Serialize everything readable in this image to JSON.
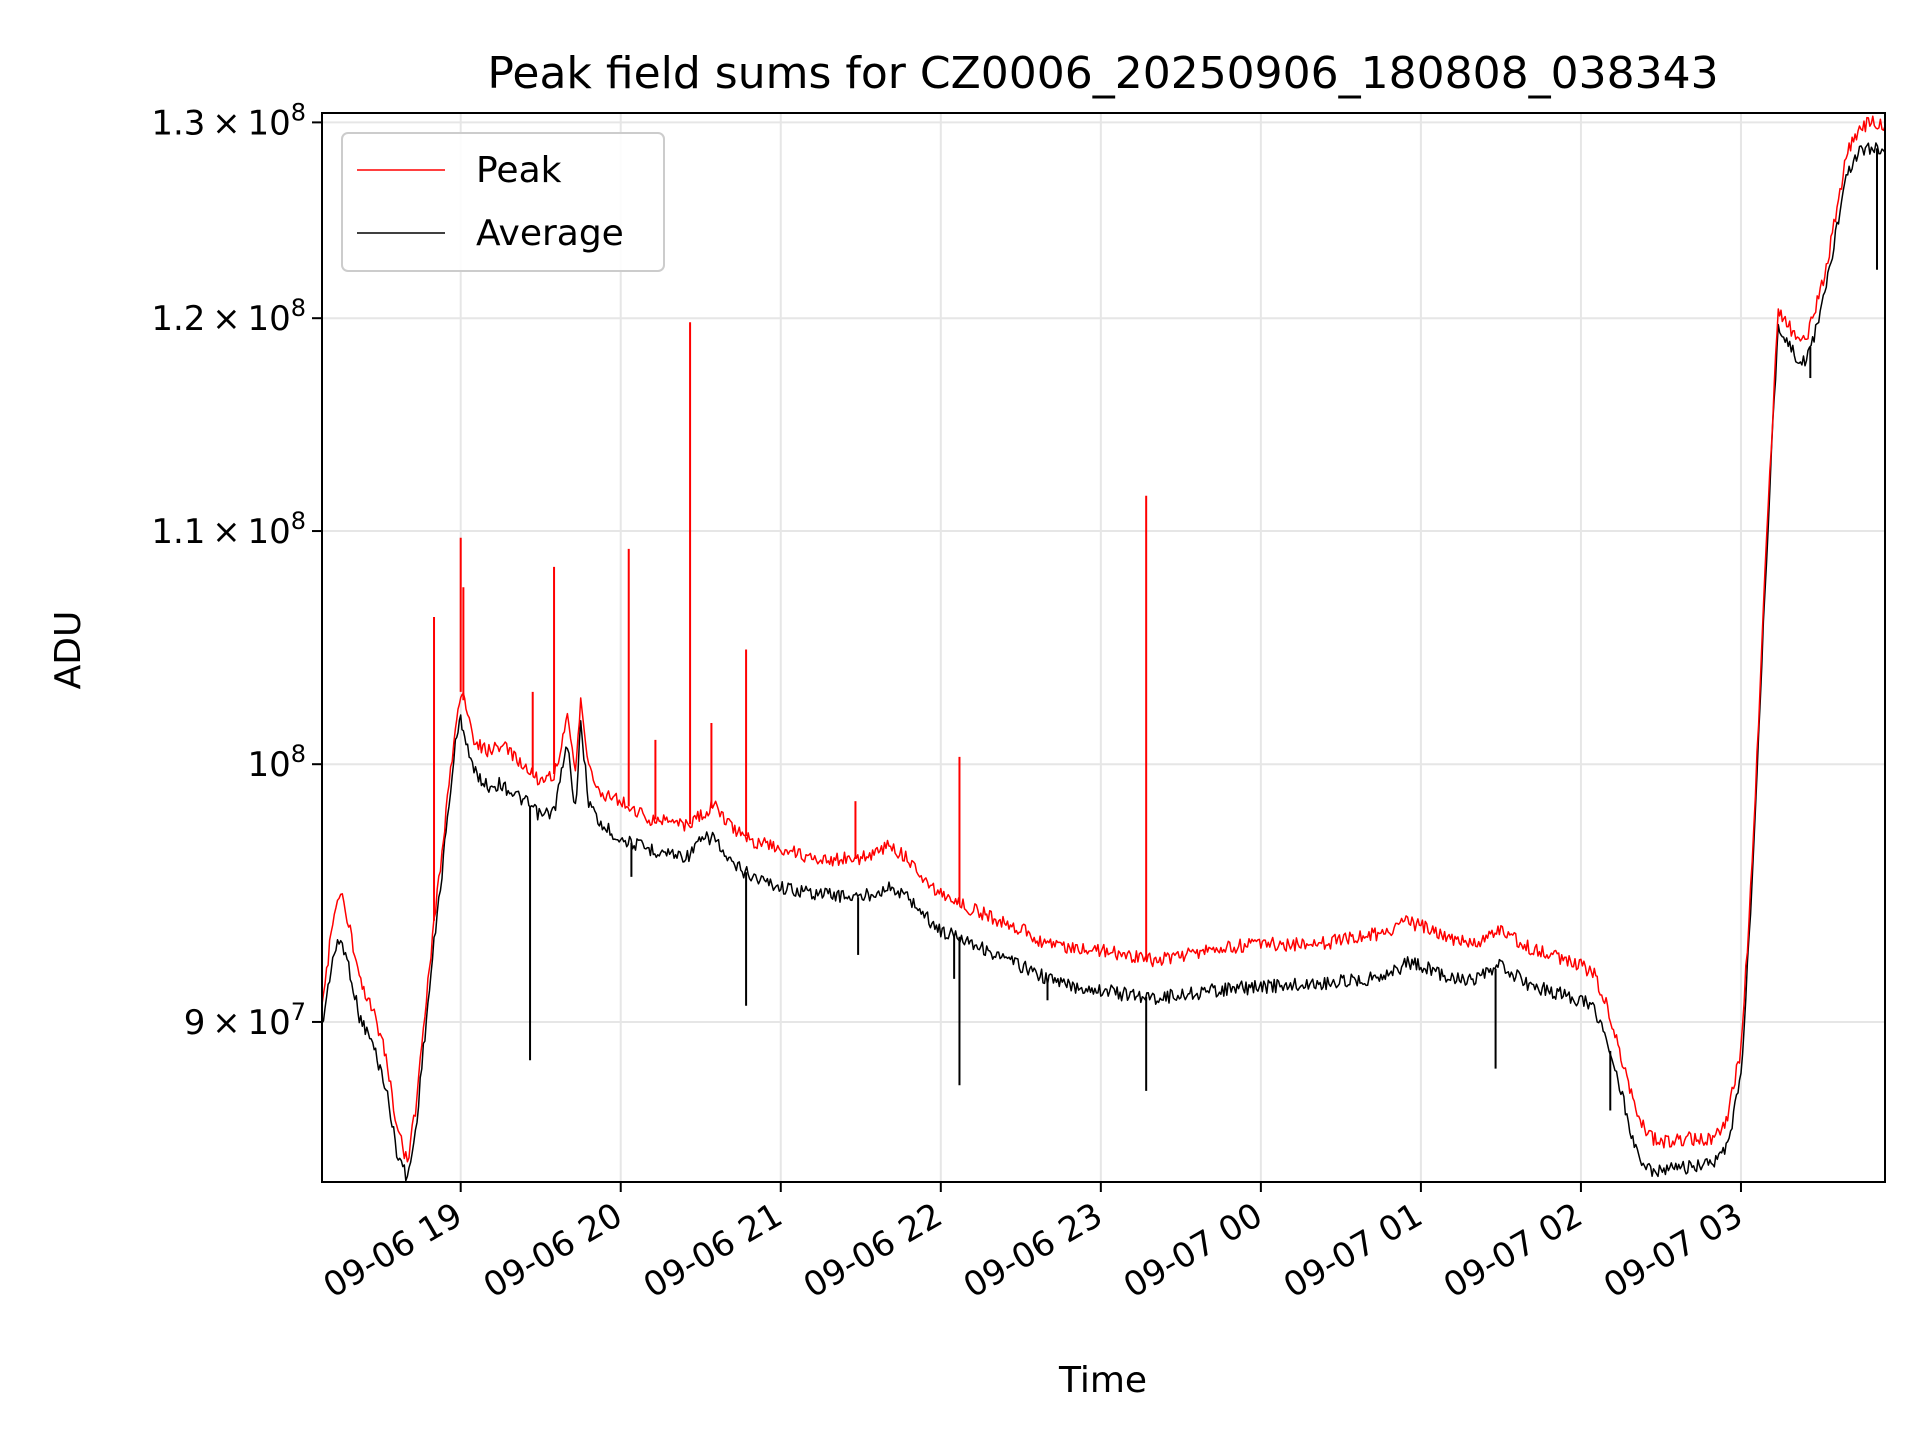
{
  "chart_data": {
    "type": "line",
    "title": "Peak field sums for CZ0006_20250906_180808_038343",
    "xlabel": "Time",
    "ylabel": "ADU",
    "yscale": "log",
    "xlim": [
      "2025-09-06 18:08",
      "2025-09-07 03:54"
    ],
    "ylim": [
      84300000,
      130500000
    ],
    "grid": true,
    "legend_position": "top-left",
    "x_ticks": [
      "09-06 19",
      "09-06 20",
      "09-06 21",
      "09-06 22",
      "09-06 23",
      "09-07 00",
      "09-07 01",
      "09-07 02",
      "09-07 03"
    ],
    "x_tick_times": [
      "2025-09-06 19:00",
      "2025-09-06 20:00",
      "2025-09-06 21:00",
      "2025-09-06 22:00",
      "2025-09-06 23:00",
      "2025-09-07 00:00",
      "2025-09-07 01:00",
      "2025-09-07 02:00",
      "2025-09-07 03:00"
    ],
    "y_ticks": [
      {
        "value": 90000000,
        "mantissa": "9",
        "exponent": "7"
      },
      {
        "value": 100000000,
        "mantissa": "",
        "exponent": "8"
      },
      {
        "value": 110000000,
        "mantissa": "1.1",
        "exponent": "8"
      },
      {
        "value": 120000000,
        "mantissa": "1.2",
        "exponent": "8"
      },
      {
        "value": 130000000,
        "mantissa": "1.3",
        "exponent": "8"
      }
    ],
    "series": [
      {
        "name": "Peak",
        "color": "#ff0000",
        "points": [
          [
            "2025-09-06 18:08",
            90500000
          ],
          [
            "2025-09-06 18:12",
            93800000
          ],
          [
            "2025-09-06 18:15",
            94800000
          ],
          [
            "2025-09-06 18:18",
            93700000
          ],
          [
            "2025-09-06 18:22",
            91500000
          ],
          [
            "2025-09-06 18:27",
            90400000
          ],
          [
            "2025-09-06 18:32",
            88800000
          ],
          [
            "2025-09-06 18:36",
            86200000
          ],
          [
            "2025-09-06 18:40",
            85000000
          ],
          [
            "2025-09-06 18:43",
            86800000
          ],
          [
            "2025-09-06 18:46",
            89800000
          ],
          [
            "2025-09-06 18:50",
            93800000
          ],
          [
            "2025-09-06 18:53",
            96500000
          ],
          [
            "2025-09-06 18:55",
            98500000
          ],
          [
            "2025-09-06 18:58",
            101500000
          ],
          [
            "2025-09-06 19:00",
            103000000
          ],
          [
            "2025-09-06 19:02",
            102300000
          ],
          [
            "2025-09-06 19:05",
            101000000
          ],
          [
            "2025-09-06 19:10",
            100500000
          ],
          [
            "2025-09-06 19:15",
            100800000
          ],
          [
            "2025-09-06 19:20",
            100300000
          ],
          [
            "2025-09-06 19:25",
            99800000
          ],
          [
            "2025-09-06 19:30",
            99300000
          ],
          [
            "2025-09-06 19:35",
            99600000
          ],
          [
            "2025-09-06 19:40",
            101800000
          ],
          [
            "2025-09-06 19:43",
            99600000
          ],
          [
            "2025-09-06 19:45",
            102800000
          ],
          [
            "2025-09-06 19:48",
            99800000
          ],
          [
            "2025-09-06 19:52",
            98900000
          ],
          [
            "2025-09-06 20:00",
            98500000
          ],
          [
            "2025-09-06 20:10",
            97800000
          ],
          [
            "2025-09-06 20:20",
            97700000
          ],
          [
            "2025-09-06 20:25",
            97500000
          ],
          [
            "2025-09-06 20:30",
            97900000
          ],
          [
            "2025-09-06 20:35",
            98300000
          ],
          [
            "2025-09-06 20:40",
            97600000
          ],
          [
            "2025-09-06 20:50",
            96900000
          ],
          [
            "2025-09-06 21:00",
            96600000
          ],
          [
            "2025-09-06 21:10",
            96300000
          ],
          [
            "2025-09-06 21:20",
            96200000
          ],
          [
            "2025-09-06 21:30",
            96200000
          ],
          [
            "2025-09-06 21:40",
            96700000
          ],
          [
            "2025-09-06 21:48",
            96200000
          ],
          [
            "2025-09-06 21:55",
            95300000
          ],
          [
            "2025-09-06 22:00",
            94800000
          ],
          [
            "2025-09-06 22:10",
            94300000
          ],
          [
            "2025-09-06 22:20",
            93900000
          ],
          [
            "2025-09-06 22:30",
            93500000
          ],
          [
            "2025-09-06 22:40",
            92900000
          ],
          [
            "2025-09-06 22:50",
            92800000
          ],
          [
            "2025-09-06 23:00",
            92700000
          ],
          [
            "2025-09-06 23:10",
            92500000
          ],
          [
            "2025-09-06 23:20",
            92300000
          ],
          [
            "2025-09-06 23:30",
            92500000
          ],
          [
            "2025-09-06 23:45",
            92800000
          ],
          [
            "2025-09-07 00:00",
            92900000
          ],
          [
            "2025-09-07 00:20",
            92900000
          ],
          [
            "2025-09-07 00:40",
            93200000
          ],
          [
            "2025-09-07 00:50",
            93500000
          ],
          [
            "2025-09-07 00:55",
            93800000
          ],
          [
            "2025-09-07 01:00",
            93600000
          ],
          [
            "2025-09-07 01:10",
            93100000
          ],
          [
            "2025-09-07 01:20",
            92900000
          ],
          [
            "2025-09-07 01:30",
            93500000
          ],
          [
            "2025-09-07 01:40",
            92800000
          ],
          [
            "2025-09-07 01:50",
            92500000
          ],
          [
            "2025-09-07 02:00",
            92100000
          ],
          [
            "2025-09-07 02:05",
            91800000
          ],
          [
            "2025-09-07 02:10",
            90500000
          ],
          [
            "2025-09-07 02:15",
            88800000
          ],
          [
            "2025-09-07 02:20",
            86900000
          ],
          [
            "2025-09-07 02:25",
            85900000
          ],
          [
            "2025-09-07 02:30",
            85700000
          ],
          [
            "2025-09-07 02:40",
            85800000
          ],
          [
            "2025-09-07 02:50",
            85800000
          ],
          [
            "2025-09-07 02:55",
            86600000
          ],
          [
            "2025-09-07 03:00",
            89000000
          ],
          [
            "2025-09-07 03:03",
            93800000
          ],
          [
            "2025-09-07 03:06",
            100300000
          ],
          [
            "2025-09-07 03:09",
            108000000
          ],
          [
            "2025-09-07 03:12",
            115500000
          ],
          [
            "2025-09-07 03:14",
            120500000
          ],
          [
            "2025-09-07 03:16",
            120000000
          ],
          [
            "2025-09-07 03:20",
            119200000
          ],
          [
            "2025-09-07 03:24",
            118800000
          ],
          [
            "2025-09-07 03:28",
            120500000
          ],
          [
            "2025-09-07 03:32",
            122500000
          ],
          [
            "2025-09-07 03:36",
            125500000
          ],
          [
            "2025-09-07 03:40",
            128500000
          ],
          [
            "2025-09-07 03:45",
            129800000
          ],
          [
            "2025-09-07 03:50",
            130000000
          ],
          [
            "2025-09-07 03:54",
            129800000
          ]
        ]
      },
      {
        "name": "Average",
        "color": "#000000",
        "points": [
          [
            "2025-09-06 18:08",
            89800000
          ],
          [
            "2025-09-06 18:12",
            92400000
          ],
          [
            "2025-09-06 18:15",
            93100000
          ],
          [
            "2025-09-06 18:18",
            92100000
          ],
          [
            "2025-09-06 18:22",
            90200000
          ],
          [
            "2025-09-06 18:27",
            89200000
          ],
          [
            "2025-09-06 18:32",
            87600000
          ],
          [
            "2025-09-06 18:36",
            85400000
          ],
          [
            "2025-09-06 18:40",
            84400000
          ],
          [
            "2025-09-06 18:43",
            86000000
          ],
          [
            "2025-09-06 18:46",
            89000000
          ],
          [
            "2025-09-06 18:50",
            92900000
          ],
          [
            "2025-09-06 18:53",
            95700000
          ],
          [
            "2025-09-06 18:55",
            97800000
          ],
          [
            "2025-09-06 18:58",
            100800000
          ],
          [
            "2025-09-06 19:00",
            101900000
          ],
          [
            "2025-09-06 19:02",
            101000000
          ],
          [
            "2025-09-06 19:05",
            99700000
          ],
          [
            "2025-09-06 19:10",
            99100000
          ],
          [
            "2025-09-06 19:15",
            99200000
          ],
          [
            "2025-09-06 19:20",
            98800000
          ],
          [
            "2025-09-06 19:25",
            98400000
          ],
          [
            "2025-09-06 19:30",
            97900000
          ],
          [
            "2025-09-06 19:35",
            98100000
          ],
          [
            "2025-09-06 19:40",
            100800000
          ],
          [
            "2025-09-06 19:43",
            98200000
          ],
          [
            "2025-09-06 19:45",
            101600000
          ],
          [
            "2025-09-06 19:48",
            98500000
          ],
          [
            "2025-09-06 19:52",
            97600000
          ],
          [
            "2025-09-06 20:00",
            97000000
          ],
          [
            "2025-09-06 20:10",
            96600000
          ],
          [
            "2025-09-06 20:20",
            96400000
          ],
          [
            "2025-09-06 20:25",
            96300000
          ],
          [
            "2025-09-06 20:30",
            96900000
          ],
          [
            "2025-09-06 20:35",
            97100000
          ],
          [
            "2025-09-06 20:40",
            96100000
          ],
          [
            "2025-09-06 20:50",
            95500000
          ],
          [
            "2025-09-06 21:00",
            95100000
          ],
          [
            "2025-09-06 21:10",
            94900000
          ],
          [
            "2025-09-06 21:20",
            94800000
          ],
          [
            "2025-09-06 21:30",
            94700000
          ],
          [
            "2025-09-06 21:40",
            95100000
          ],
          [
            "2025-09-06 21:48",
            94700000
          ],
          [
            "2025-09-06 21:55",
            93900000
          ],
          [
            "2025-09-06 22:00",
            93400000
          ],
          [
            "2025-09-06 22:10",
            93100000
          ],
          [
            "2025-09-06 22:20",
            92500000
          ],
          [
            "2025-09-06 22:30",
            92100000
          ],
          [
            "2025-09-06 22:40",
            91600000
          ],
          [
            "2025-09-06 22:50",
            91300000
          ],
          [
            "2025-09-06 23:00",
            91200000
          ],
          [
            "2025-09-06 23:10",
            91000000
          ],
          [
            "2025-09-06 23:20",
            90900000
          ],
          [
            "2025-09-06 23:30",
            91000000
          ],
          [
            "2025-09-06 23:45",
            91200000
          ],
          [
            "2025-09-07 00:00",
            91300000
          ],
          [
            "2025-09-07 00:20",
            91400000
          ],
          [
            "2025-09-07 00:40",
            91600000
          ],
          [
            "2025-09-07 00:50",
            91900000
          ],
          [
            "2025-09-07 00:55",
            92200000
          ],
          [
            "2025-09-07 01:00",
            92100000
          ],
          [
            "2025-09-07 01:10",
            91700000
          ],
          [
            "2025-09-07 01:20",
            91500000
          ],
          [
            "2025-09-07 01:30",
            92100000
          ],
          [
            "2025-09-07 01:40",
            91400000
          ],
          [
            "2025-09-07 01:50",
            91100000
          ],
          [
            "2025-09-07 02:00",
            90800000
          ],
          [
            "2025-09-07 02:05",
            90500000
          ],
          [
            "2025-09-07 02:10",
            89300000
          ],
          [
            "2025-09-07 02:15",
            87500000
          ],
          [
            "2025-09-07 02:20",
            85600000
          ],
          [
            "2025-09-07 02:25",
            84700000
          ],
          [
            "2025-09-07 02:30",
            84700000
          ],
          [
            "2025-09-07 02:40",
            84800000
          ],
          [
            "2025-09-07 02:50",
            84900000
          ],
          [
            "2025-09-07 02:55",
            85600000
          ],
          [
            "2025-09-07 03:00",
            88000000
          ],
          [
            "2025-09-07 03:03",
            93000000
          ],
          [
            "2025-09-07 03:06",
            99600000
          ],
          [
            "2025-09-07 03:09",
            107400000
          ],
          [
            "2025-09-07 03:12",
            115000000
          ],
          [
            "2025-09-07 03:14",
            119700000
          ],
          [
            "2025-09-07 03:16",
            119200000
          ],
          [
            "2025-09-07 03:20",
            118200000
          ],
          [
            "2025-09-07 03:24",
            117800000
          ],
          [
            "2025-09-07 03:28",
            119400000
          ],
          [
            "2025-09-07 03:32",
            121500000
          ],
          [
            "2025-09-07 03:36",
            124500000
          ],
          [
            "2025-09-07 03:40",
            127300000
          ],
          [
            "2025-09-07 03:45",
            128500000
          ],
          [
            "2025-09-07 03:50",
            128700000
          ],
          [
            "2025-09-07 03:54",
            128400000
          ]
        ]
      }
    ],
    "peak_spikes": [
      [
        "2025-09-06 18:50",
        106200000
      ],
      [
        "2025-09-06 19:00",
        109700000
      ],
      [
        "2025-09-06 19:01",
        107500000
      ],
      [
        "2025-09-06 19:27",
        103000000
      ],
      [
        "2025-09-06 19:35",
        108400000
      ],
      [
        "2025-09-06 20:03",
        109200000
      ],
      [
        "2025-09-06 20:13",
        101000000
      ],
      [
        "2025-09-06 20:26",
        119800000
      ],
      [
        "2025-09-06 20:34",
        101700000
      ],
      [
        "2025-09-06 20:47",
        104800000
      ],
      [
        "2025-09-06 21:28",
        98500000
      ],
      [
        "2025-09-06 22:07",
        100300000
      ],
      [
        "2025-09-06 23:17",
        111600000
      ]
    ],
    "average_dips": [
      [
        "2025-09-06 19:26",
        88600000
      ],
      [
        "2025-09-06 20:04",
        95500000
      ],
      [
        "2025-09-06 20:47",
        90600000
      ],
      [
        "2025-09-06 21:29",
        92500000
      ],
      [
        "2025-09-06 22:05",
        91600000
      ],
      [
        "2025-09-06 22:07",
        87700000
      ],
      [
        "2025-09-06 22:40",
        90800000
      ],
      [
        "2025-09-06 23:17",
        87500000
      ],
      [
        "2025-09-07 01:28",
        88300000
      ],
      [
        "2025-09-07 02:11",
        86800000
      ],
      [
        "2025-09-07 03:26",
        117100000
      ],
      [
        "2025-09-07 03:51",
        122400000
      ]
    ]
  }
}
